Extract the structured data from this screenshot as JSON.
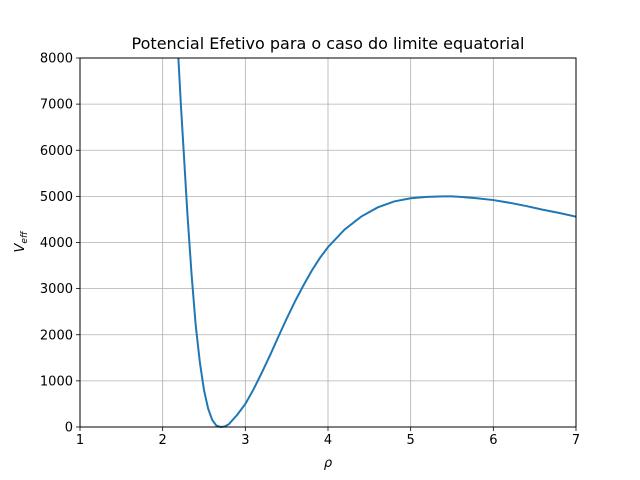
{
  "chart_data": {
    "type": "line",
    "title": "Potencial Efetivo para o caso do limite equatorial",
    "xlabel": "ρ",
    "ylabel_main": "V",
    "ylabel_sub": "eff",
    "xlim": [
      1,
      7
    ],
    "ylim": [
      0,
      8000
    ],
    "x_ticks": [
      1,
      2,
      3,
      4,
      5,
      6,
      7
    ],
    "y_ticks": [
      0,
      1000,
      2000,
      3000,
      4000,
      5000,
      6000,
      7000,
      8000
    ],
    "grid": true,
    "line_color": "#1f77b4",
    "series": [
      {
        "x": [
          2.19,
          2.22,
          2.26,
          2.3,
          2.35,
          2.4,
          2.45,
          2.5,
          2.55,
          2.6,
          2.65,
          2.7,
          2.75,
          2.8,
          2.85,
          2.9,
          3.0,
          3.1,
          3.2,
          3.3,
          3.4,
          3.5,
          3.6,
          3.7,
          3.8,
          3.9,
          4.0,
          4.2,
          4.4,
          4.6,
          4.8,
          5.0,
          5.2,
          5.4,
          5.5,
          5.6,
          5.8,
          6.0,
          6.2,
          6.4,
          6.6,
          6.8,
          7.0
        ],
        "y": [
          8000,
          7000,
          5800,
          4600,
          3300,
          2200,
          1400,
          800,
          400,
          150,
          30,
          0,
          10,
          60,
          160,
          260,
          500,
          820,
          1180,
          1560,
          1960,
          2350,
          2720,
          3060,
          3380,
          3660,
          3900,
          4280,
          4560,
          4760,
          4890,
          4960,
          4990,
          5000,
          5000,
          4990,
          4960,
          4920,
          4860,
          4790,
          4710,
          4640,
          4560
        ]
      }
    ]
  }
}
